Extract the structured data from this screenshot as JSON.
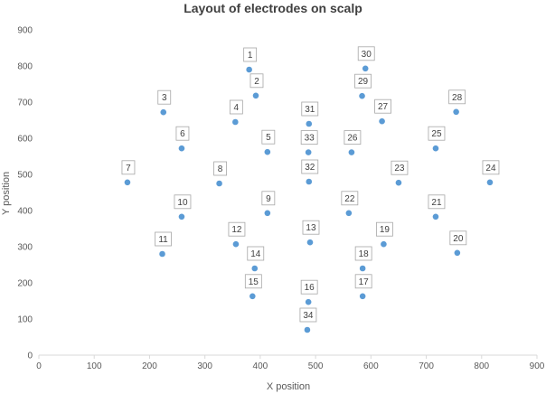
{
  "chart_data": {
    "type": "scatter",
    "title": "Layout of electrodes on scalp",
    "xlabel": "X position",
    "ylabel": "Y position",
    "xlim": [
      0,
      900
    ],
    "ylim": [
      0,
      900
    ],
    "xticks": [
      0,
      100,
      200,
      300,
      400,
      500,
      600,
      700,
      800,
      900
    ],
    "yticks": [
      0,
      100,
      200,
      300,
      400,
      500,
      600,
      700,
      800,
      900
    ],
    "grid": false,
    "legend": "none",
    "color": "#5b9bd5",
    "points": [
      {
        "label": "1",
        "x": 380,
        "y": 790
      },
      {
        "label": "2",
        "x": 392,
        "y": 718
      },
      {
        "label": "3",
        "x": 225,
        "y": 672
      },
      {
        "label": "4",
        "x": 355,
        "y": 645
      },
      {
        "label": "5",
        "x": 413,
        "y": 562
      },
      {
        "label": "6",
        "x": 258,
        "y": 572
      },
      {
        "label": "7",
        "x": 160,
        "y": 478
      },
      {
        "label": "8",
        "x": 326,
        "y": 475
      },
      {
        "label": "9",
        "x": 413,
        "y": 393
      },
      {
        "label": "10",
        "x": 258,
        "y": 383
      },
      {
        "label": "11",
        "x": 223,
        "y": 280
      },
      {
        "label": "12",
        "x": 356,
        "y": 307
      },
      {
        "label": "13",
        "x": 490,
        "y": 312
      },
      {
        "label": "14",
        "x": 390,
        "y": 240
      },
      {
        "label": "15",
        "x": 386,
        "y": 163
      },
      {
        "label": "16",
        "x": 487,
        "y": 147
      },
      {
        "label": "17",
        "x": 585,
        "y": 163
      },
      {
        "label": "18",
        "x": 585,
        "y": 240
      },
      {
        "label": "19",
        "x": 623,
        "y": 307
      },
      {
        "label": "20",
        "x": 756,
        "y": 283
      },
      {
        "label": "21",
        "x": 717,
        "y": 383
      },
      {
        "label": "22",
        "x": 560,
        "y": 393
      },
      {
        "label": "23",
        "x": 650,
        "y": 477
      },
      {
        "label": "24",
        "x": 815,
        "y": 478
      },
      {
        "label": "25",
        "x": 717,
        "y": 572
      },
      {
        "label": "26",
        "x": 565,
        "y": 561
      },
      {
        "label": "27",
        "x": 620,
        "y": 647
      },
      {
        "label": "28",
        "x": 754,
        "y": 673
      },
      {
        "label": "29",
        "x": 584,
        "y": 717
      },
      {
        "label": "30",
        "x": 590,
        "y": 793
      },
      {
        "label": "31",
        "x": 488,
        "y": 640
      },
      {
        "label": "32",
        "x": 488,
        "y": 480
      },
      {
        "label": "33",
        "x": 487,
        "y": 561
      },
      {
        "label": "34",
        "x": 485,
        "y": 70
      }
    ]
  }
}
